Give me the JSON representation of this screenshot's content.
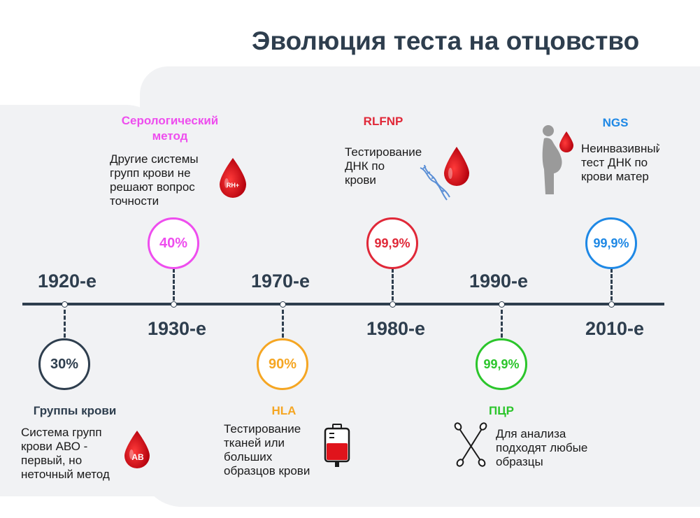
{
  "title": "Эволюция теста на отцовство",
  "colors": {
    "dark": "#2e3e4e",
    "pink": "#ee4dee",
    "orange": "#f5a623",
    "red": "#e02838",
    "green": "#2bc52b",
    "blue": "#1e88e5",
    "drop": "#d0141c"
  },
  "periods": [
    {
      "year": "1920-е",
      "accuracy": "30%",
      "method": "Группы крови",
      "description": [
        "Система   групп",
        "крови АВО -",
        "первый, но",
        "неточный метод"
      ],
      "icon": "blood-drop-ab-icon",
      "icon_text": "AB"
    },
    {
      "year": "1930-е",
      "accuracy": "40%",
      "method": "Серологический метод",
      "description": [
        "Другие системы",
        "групп крови не",
        "решают вопрос",
        "точности"
      ],
      "icon": "blood-drop-rh-icon",
      "icon_text": "RH+"
    },
    {
      "year": "1970-е",
      "accuracy": "90%",
      "method": "HLA",
      "description": [
        "Тестирование",
        "тканей или",
        "больших",
        "образцов крови"
      ],
      "icon": "blood-bag-icon"
    },
    {
      "year": "1980-е",
      "accuracy": "99,9%",
      "method": "RLFNP",
      "description": [
        "Тестирование",
        "ДНК по",
        "крови"
      ],
      "icon": "dna-blood-drop-icon"
    },
    {
      "year": "1990-е",
      "accuracy": "99,9%",
      "method": "ПЦР",
      "description": [
        "Для анализа",
        "подходят любые",
        "образцы"
      ],
      "icon": "cotton-swabs-icon"
    },
    {
      "year": "2010-е",
      "accuracy": "99,9%",
      "method": "NGS",
      "description": [
        "Неинвазивный",
        "тест ДНК по",
        "крови матер"
      ],
      "icon": "pregnant-woman-icon"
    }
  ]
}
